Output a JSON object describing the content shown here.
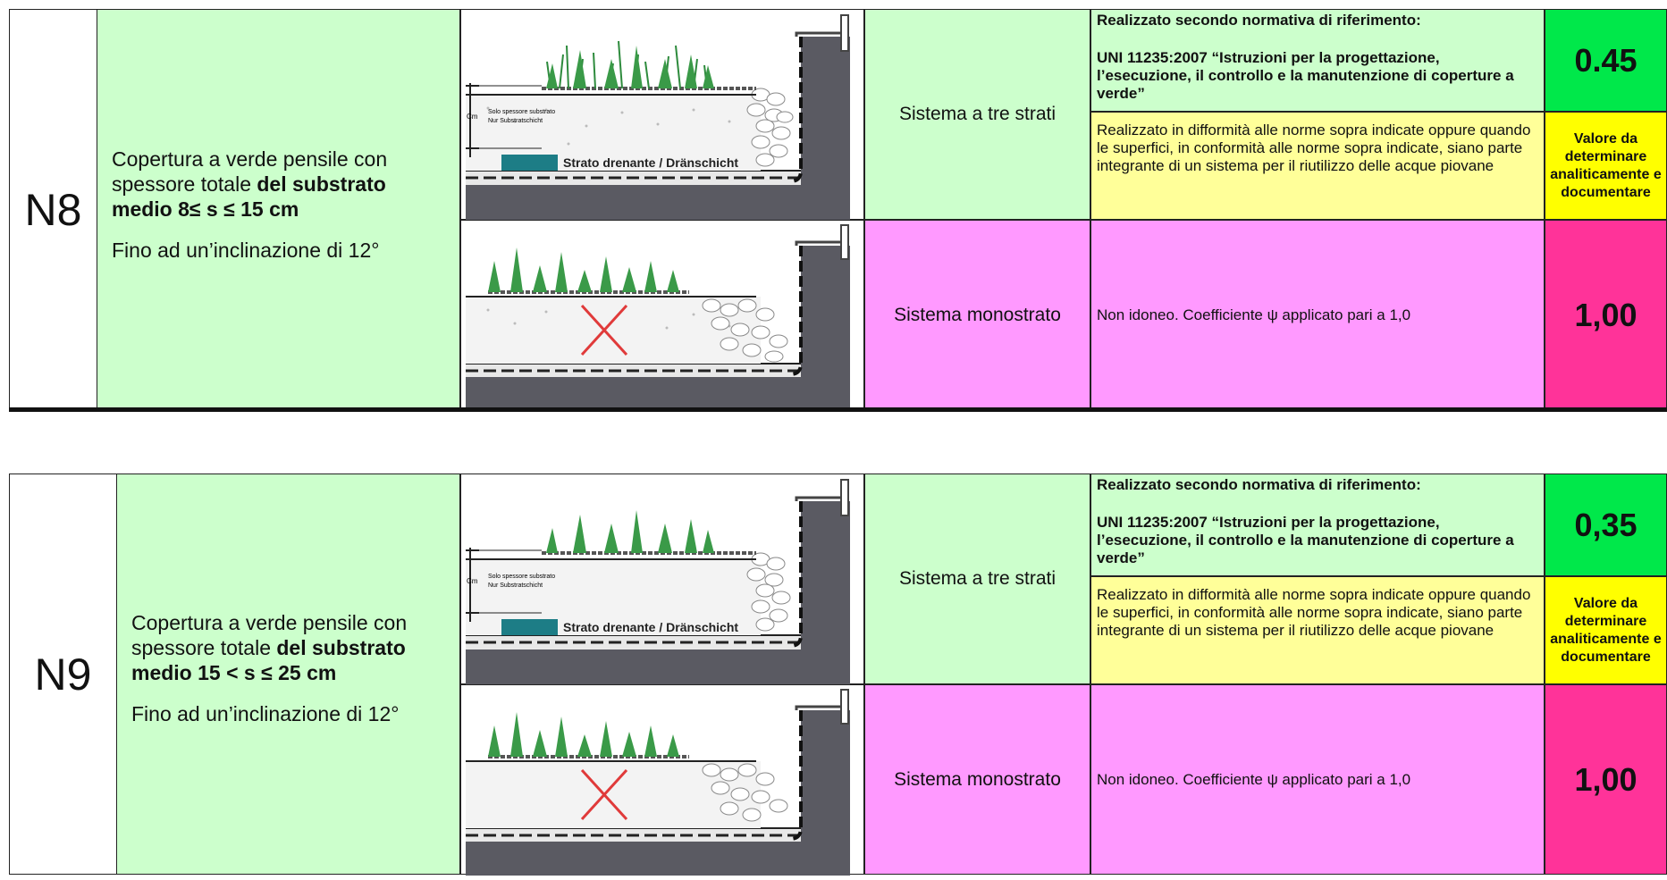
{
  "rows": [
    {
      "code": "N8",
      "desc_line1": "Copertura a verde pensile con",
      "desc_line2_a": "spessore totale ",
      "desc_line2_b": "del substrato",
      "desc_line3": "medio  8≤ s ≤ 15 cm",
      "desc_incline": "Fino ad un’inclinazione di 12°",
      "sys1": "Sistema a tre strati",
      "sys2": "Sistema monostrato",
      "norm_title": "Realizzato secondo normativa di riferimento:",
      "norm_ref": "UNI 11235:2007  “Istruzioni per la progettazione, l’esecuzione, il controllo e la manutenzione di coperture a verde”",
      "norm_alt": "Realizzato in difformità alle norme sopra indicate oppure quando le superfici, in conformità alle norme sopra indicate, siano parte integrante di un sistema per il riutilizzo delle acque piovane",
      "norm_mono": "Non idoneo. Coefficiente  ψ applicato pari a 1,0",
      "val1": "0.45",
      "val2": "Valore da determinare analiticamente e documentare",
      "val3": "1,00"
    },
    {
      "code": "N9",
      "desc_line1": "Copertura a verde pensile con",
      "desc_line2_a": "spessore totale ",
      "desc_line2_b": "del substrato",
      "desc_line3": "medio  15 < s ≤ 25 cm",
      "desc_incline": "Fino ad un’inclinazione di 12°",
      "sys1": "Sistema a tre strati",
      "sys2": "Sistema monostrato",
      "norm_title": "Realizzato secondo normativa di riferimento:",
      "norm_ref": "UNI 11235:2007  “Istruzioni per la progettazione, l’esecuzione, il controllo e la manutenzione di coperture a verde”",
      "norm_alt": "Realizzato in difformità alle norme sopra indicate oppure quando le superfici, in conformità alle norme sopra indicate, siano parte integrante di un sistema per il riutilizzo delle acque piovane",
      "norm_mono": "Non idoneo. Coefficiente  ψ applicato pari a 1,0",
      "val1": "0,35",
      "val2": "Valore da determinare analiticamente e documentare",
      "val3": "1,00"
    }
  ],
  "figure": {
    "cm_label": "Cm",
    "substrate_label_1": "Solo spessore substrato",
    "substrate_label_2": "Nur Substratschicht",
    "drain_label": "Strato drenante / Dränschicht"
  },
  "colors": {
    "light_green": "#ccffcc",
    "pink": "#ff99ff",
    "light_yellow": "#ffff99",
    "bright_green": "#00e84a",
    "bright_yellow": "#ffff00",
    "magenta": "#ff3399"
  }
}
